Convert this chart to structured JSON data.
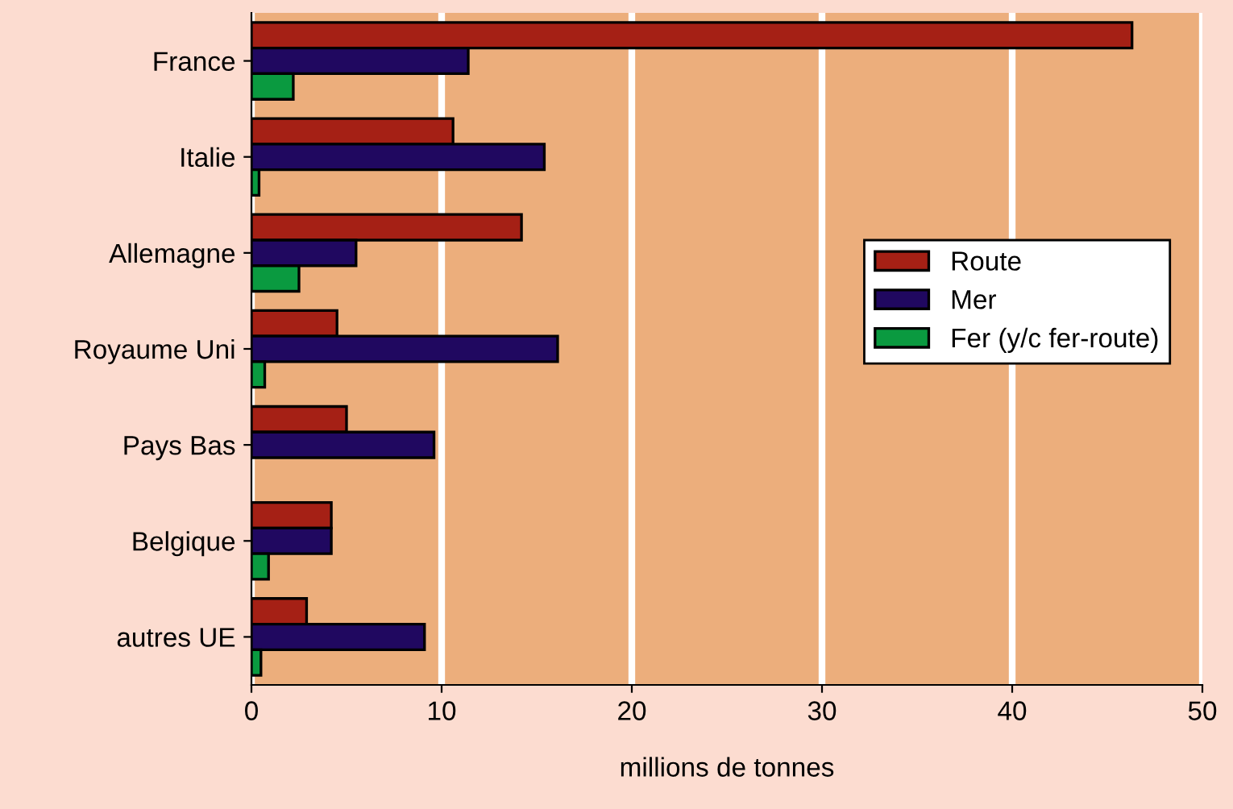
{
  "chart_data": {
    "type": "bar",
    "orientation": "horizontal",
    "xlabel": "millions de tonnes",
    "categories": [
      "France",
      "Italie",
      "Allemagne",
      "Royaume Uni",
      "Pays Bas",
      "Belgique",
      "autres UE"
    ],
    "series": [
      {
        "name": "Route",
        "color": "#a52015",
        "values": [
          46.3,
          10.6,
          14.2,
          4.5,
          5.0,
          4.2,
          2.9
        ]
      },
      {
        "name": "Mer",
        "color": "#200860",
        "values": [
          11.4,
          15.4,
          5.5,
          16.1,
          9.6,
          4.2,
          9.1
        ]
      },
      {
        "name": "Fer (y/c fer-route)",
        "color": "#0a9a40",
        "values": [
          2.2,
          0.4,
          2.5,
          0.7,
          null,
          0.9,
          0.5
        ]
      }
    ],
    "xlim": [
      0,
      50
    ],
    "xticks": [
      0,
      10,
      20,
      30,
      40,
      50
    ],
    "grid": "x",
    "legend": "right"
  }
}
